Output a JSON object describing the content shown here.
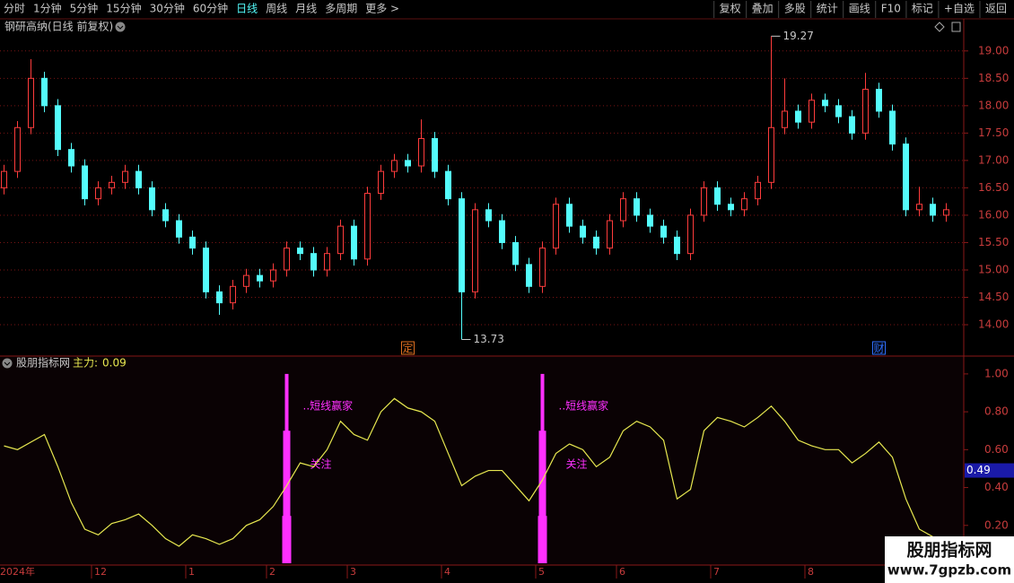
{
  "toolbar": {
    "left": [
      "分时",
      "1分钟",
      "5分钟",
      "15分钟",
      "30分钟",
      "60分钟",
      "日线",
      "周线",
      "月线",
      "多周期",
      "更多 >"
    ],
    "active": "日线",
    "right": [
      "复权",
      "叠加",
      "多股",
      "统计",
      "画线",
      "F10",
      "标记",
      "+自选",
      "返回"
    ]
  },
  "chart_data": [
    {
      "type": "candlestick",
      "title": "钢研高纳(日线 前复权)",
      "up_color": "#ff3c3c",
      "down_color": "#54fcfc",
      "grid": true,
      "ylim": [
        13.46,
        19.57
      ],
      "yticks": [
        {
          "value": 14,
          "label": "14.00"
        },
        {
          "value": 14.5,
          "label": "14.50"
        },
        {
          "value": 15,
          "label": "15.00"
        },
        {
          "value": 15.5,
          "label": "15.50"
        },
        {
          "value": 16,
          "label": "16.00"
        },
        {
          "value": 16.5,
          "label": "16.50"
        },
        {
          "value": 17,
          "label": "17.00"
        },
        {
          "value": 17.5,
          "label": "17.50"
        },
        {
          "value": 18,
          "label": "18.00"
        },
        {
          "value": 18.5,
          "label": "18.50"
        },
        {
          "value": 19,
          "label": "19.00"
        }
      ],
      "categories": [
        "2024年",
        null,
        null,
        null,
        null,
        null,
        null,
        "12",
        null,
        null,
        null,
        null,
        null,
        null,
        "1",
        null,
        null,
        null,
        null,
        null,
        "2",
        null,
        null,
        null,
        null,
        null,
        "3",
        null,
        null,
        null,
        null,
        null,
        null,
        "4",
        null,
        null,
        null,
        null,
        null,
        null,
        "5",
        null,
        null,
        null,
        null,
        null,
        "6",
        null,
        null,
        null,
        null,
        null,
        null,
        "7",
        null,
        null,
        null,
        null,
        null,
        null,
        "8",
        null,
        null,
        null,
        null,
        null,
        null,
        null,
        null,
        null,
        null
      ],
      "events": [
        null,
        null,
        null,
        null,
        null,
        null,
        null,
        null,
        null,
        null,
        null,
        null,
        null,
        null,
        null,
        null,
        null,
        null,
        null,
        null,
        null,
        null,
        null,
        null,
        null,
        null,
        null,
        null,
        null,
        null,
        "定",
        null,
        null,
        null,
        null,
        null,
        null,
        null,
        null,
        null,
        null,
        null,
        null,
        null,
        null,
        null,
        null,
        null,
        null,
        null,
        null,
        null,
        null,
        null,
        null,
        null,
        null,
        null,
        null,
        null,
        null,
        null,
        null,
        null,
        null,
        "财",
        null,
        null,
        null,
        null,
        null
      ],
      "event_colors": [
        "#e07020",
        "#3070ff"
      ],
      "open": [
        16.5,
        16.8,
        17.6,
        18.5,
        18.0,
        17.2,
        16.9,
        16.3,
        16.5,
        16.6,
        16.8,
        16.5,
        16.1,
        15.9,
        15.6,
        15.4,
        14.6,
        14.4,
        14.7,
        14.9,
        14.8,
        15.0,
        15.4,
        15.3,
        15.0,
        15.3,
        15.8,
        15.2,
        16.4,
        16.8,
        17.0,
        16.9,
        17.4,
        16.8,
        16.3,
        14.6,
        16.1,
        15.9,
        15.5,
        15.1,
        14.7,
        15.4,
        16.2,
        15.8,
        15.6,
        15.4,
        15.9,
        16.3,
        16.0,
        15.8,
        15.6,
        15.3,
        16.0,
        16.5,
        16.2,
        16.1,
        16.3,
        16.6,
        17.6,
        17.9,
        17.7,
        18.1,
        18.0,
        17.8,
        17.5,
        18.3,
        17.9,
        17.3,
        16.1,
        16.2,
        16.0
      ],
      "high": [
        16.92,
        17.72,
        18.85,
        18.62,
        18.12,
        17.32,
        17.02,
        16.62,
        16.72,
        16.92,
        16.92,
        16.62,
        16.22,
        16.02,
        15.72,
        15.52,
        14.72,
        14.82,
        15.02,
        15.02,
        15.12,
        15.52,
        15.52,
        15.42,
        15.42,
        15.92,
        15.92,
        16.52,
        16.92,
        17.12,
        17.12,
        17.75,
        17.52,
        16.92,
        16.42,
        16.22,
        16.22,
        16.02,
        15.62,
        15.22,
        15.52,
        16.32,
        16.32,
        15.92,
        15.72,
        16.02,
        16.42,
        16.42,
        16.12,
        15.92,
        15.72,
        16.12,
        16.62,
        16.62,
        16.32,
        16.42,
        16.72,
        19.27,
        18.5,
        18.02,
        18.22,
        18.22,
        18.12,
        17.92,
        18.6,
        18.42,
        18.02,
        17.42,
        16.52,
        16.32,
        16.22
      ],
      "low": [
        16.38,
        16.68,
        17.48,
        17.88,
        17.08,
        16.78,
        16.18,
        16.18,
        16.38,
        16.48,
        16.38,
        15.98,
        15.78,
        15.48,
        15.28,
        14.48,
        14.18,
        14.28,
        14.58,
        14.68,
        14.68,
        14.88,
        15.18,
        14.88,
        14.88,
        15.18,
        15.08,
        15.08,
        16.28,
        16.68,
        16.78,
        16.78,
        16.68,
        16.18,
        13.73,
        14.48,
        15.78,
        15.38,
        14.98,
        14.58,
        14.58,
        15.28,
        15.68,
        15.48,
        15.28,
        15.28,
        15.78,
        15.88,
        15.68,
        15.48,
        15.18,
        15.18,
        15.88,
        16.08,
        15.98,
        15.98,
        16.18,
        16.48,
        17.48,
        17.58,
        17.58,
        17.88,
        17.68,
        17.38,
        17.38,
        17.78,
        17.18,
        15.98,
        15.98,
        15.88,
        15.88
      ],
      "close": [
        16.8,
        17.6,
        18.5,
        18.0,
        17.2,
        16.9,
        16.3,
        16.5,
        16.6,
        16.8,
        16.5,
        16.1,
        15.9,
        15.6,
        15.4,
        14.6,
        14.4,
        14.7,
        14.9,
        14.8,
        15.0,
        15.4,
        15.3,
        15.0,
        15.3,
        15.8,
        15.2,
        16.4,
        16.8,
        17.0,
        16.9,
        17.4,
        16.8,
        16.3,
        14.6,
        16.1,
        15.9,
        15.5,
        15.1,
        14.7,
        15.4,
        16.2,
        15.8,
        15.6,
        15.4,
        15.9,
        16.3,
        16.0,
        15.8,
        15.6,
        15.3,
        16.0,
        16.5,
        16.2,
        16.1,
        16.3,
        16.6,
        17.6,
        17.9,
        17.7,
        18.1,
        18.0,
        17.8,
        17.5,
        18.3,
        17.9,
        17.3,
        16.1,
        16.2,
        16.0,
        16.1
      ]
    },
    {
      "type": "line",
      "title": "股朋指标网",
      "legend_label": "主力:",
      "legend_value": 0.09,
      "color": "#e8e850",
      "signal_color": "#ff30ff",
      "ylim": [
        0,
        1.08
      ],
      "yticks": [
        {
          "value": 0.2,
          "label": "0.20"
        },
        {
          "value": 0.4,
          "label": "0.40"
        },
        {
          "value": 0.6,
          "label": "0.60"
        },
        {
          "value": 0.8,
          "label": "0.80"
        },
        {
          "value": 1.0,
          "label": "1.00"
        }
      ],
      "cursor_value": 0.49,
      "values": [
        0.62,
        0.6,
        0.64,
        0.68,
        0.51,
        0.32,
        0.18,
        0.15,
        0.21,
        0.23,
        0.26,
        0.2,
        0.13,
        0.09,
        0.15,
        0.13,
        0.1,
        0.13,
        0.2,
        0.23,
        0.3,
        0.41,
        0.53,
        0.51,
        0.6,
        0.75,
        0.68,
        0.65,
        0.8,
        0.87,
        0.82,
        0.8,
        0.75,
        0.58,
        0.41,
        0.46,
        0.49,
        0.49,
        0.41,
        0.33,
        0.44,
        0.58,
        0.63,
        0.6,
        0.51,
        0.56,
        0.7,
        0.75,
        0.72,
        0.65,
        0.34,
        0.39,
        0.7,
        0.77,
        0.75,
        0.72,
        0.77,
        0.83,
        0.75,
        0.65,
        0.62,
        0.6,
        0.6,
        0.53,
        0.58,
        0.64,
        0.56,
        0.34,
        0.18,
        0.14,
        0.13
      ],
      "signal": [
        null,
        null,
        null,
        null,
        null,
        null,
        null,
        null,
        null,
        null,
        null,
        null,
        null,
        null,
        null,
        null,
        null,
        null,
        null,
        null,
        null,
        1,
        null,
        null,
        null,
        null,
        null,
        null,
        null,
        null,
        null,
        null,
        null,
        null,
        null,
        null,
        null,
        null,
        null,
        null,
        1,
        null,
        null,
        null,
        null,
        null,
        null,
        null,
        null,
        null,
        null,
        null,
        null,
        null,
        null,
        null,
        null,
        null,
        null,
        null,
        null,
        null,
        null,
        null,
        null,
        null,
        null,
        null,
        null,
        null,
        null
      ],
      "annotations": [
        "..短线赢家",
        "关注",
        "..短线赢家",
        "关注"
      ]
    }
  ],
  "watermark": {
    "title": "股朋指标网",
    "url": "www.7gpzb.com"
  }
}
